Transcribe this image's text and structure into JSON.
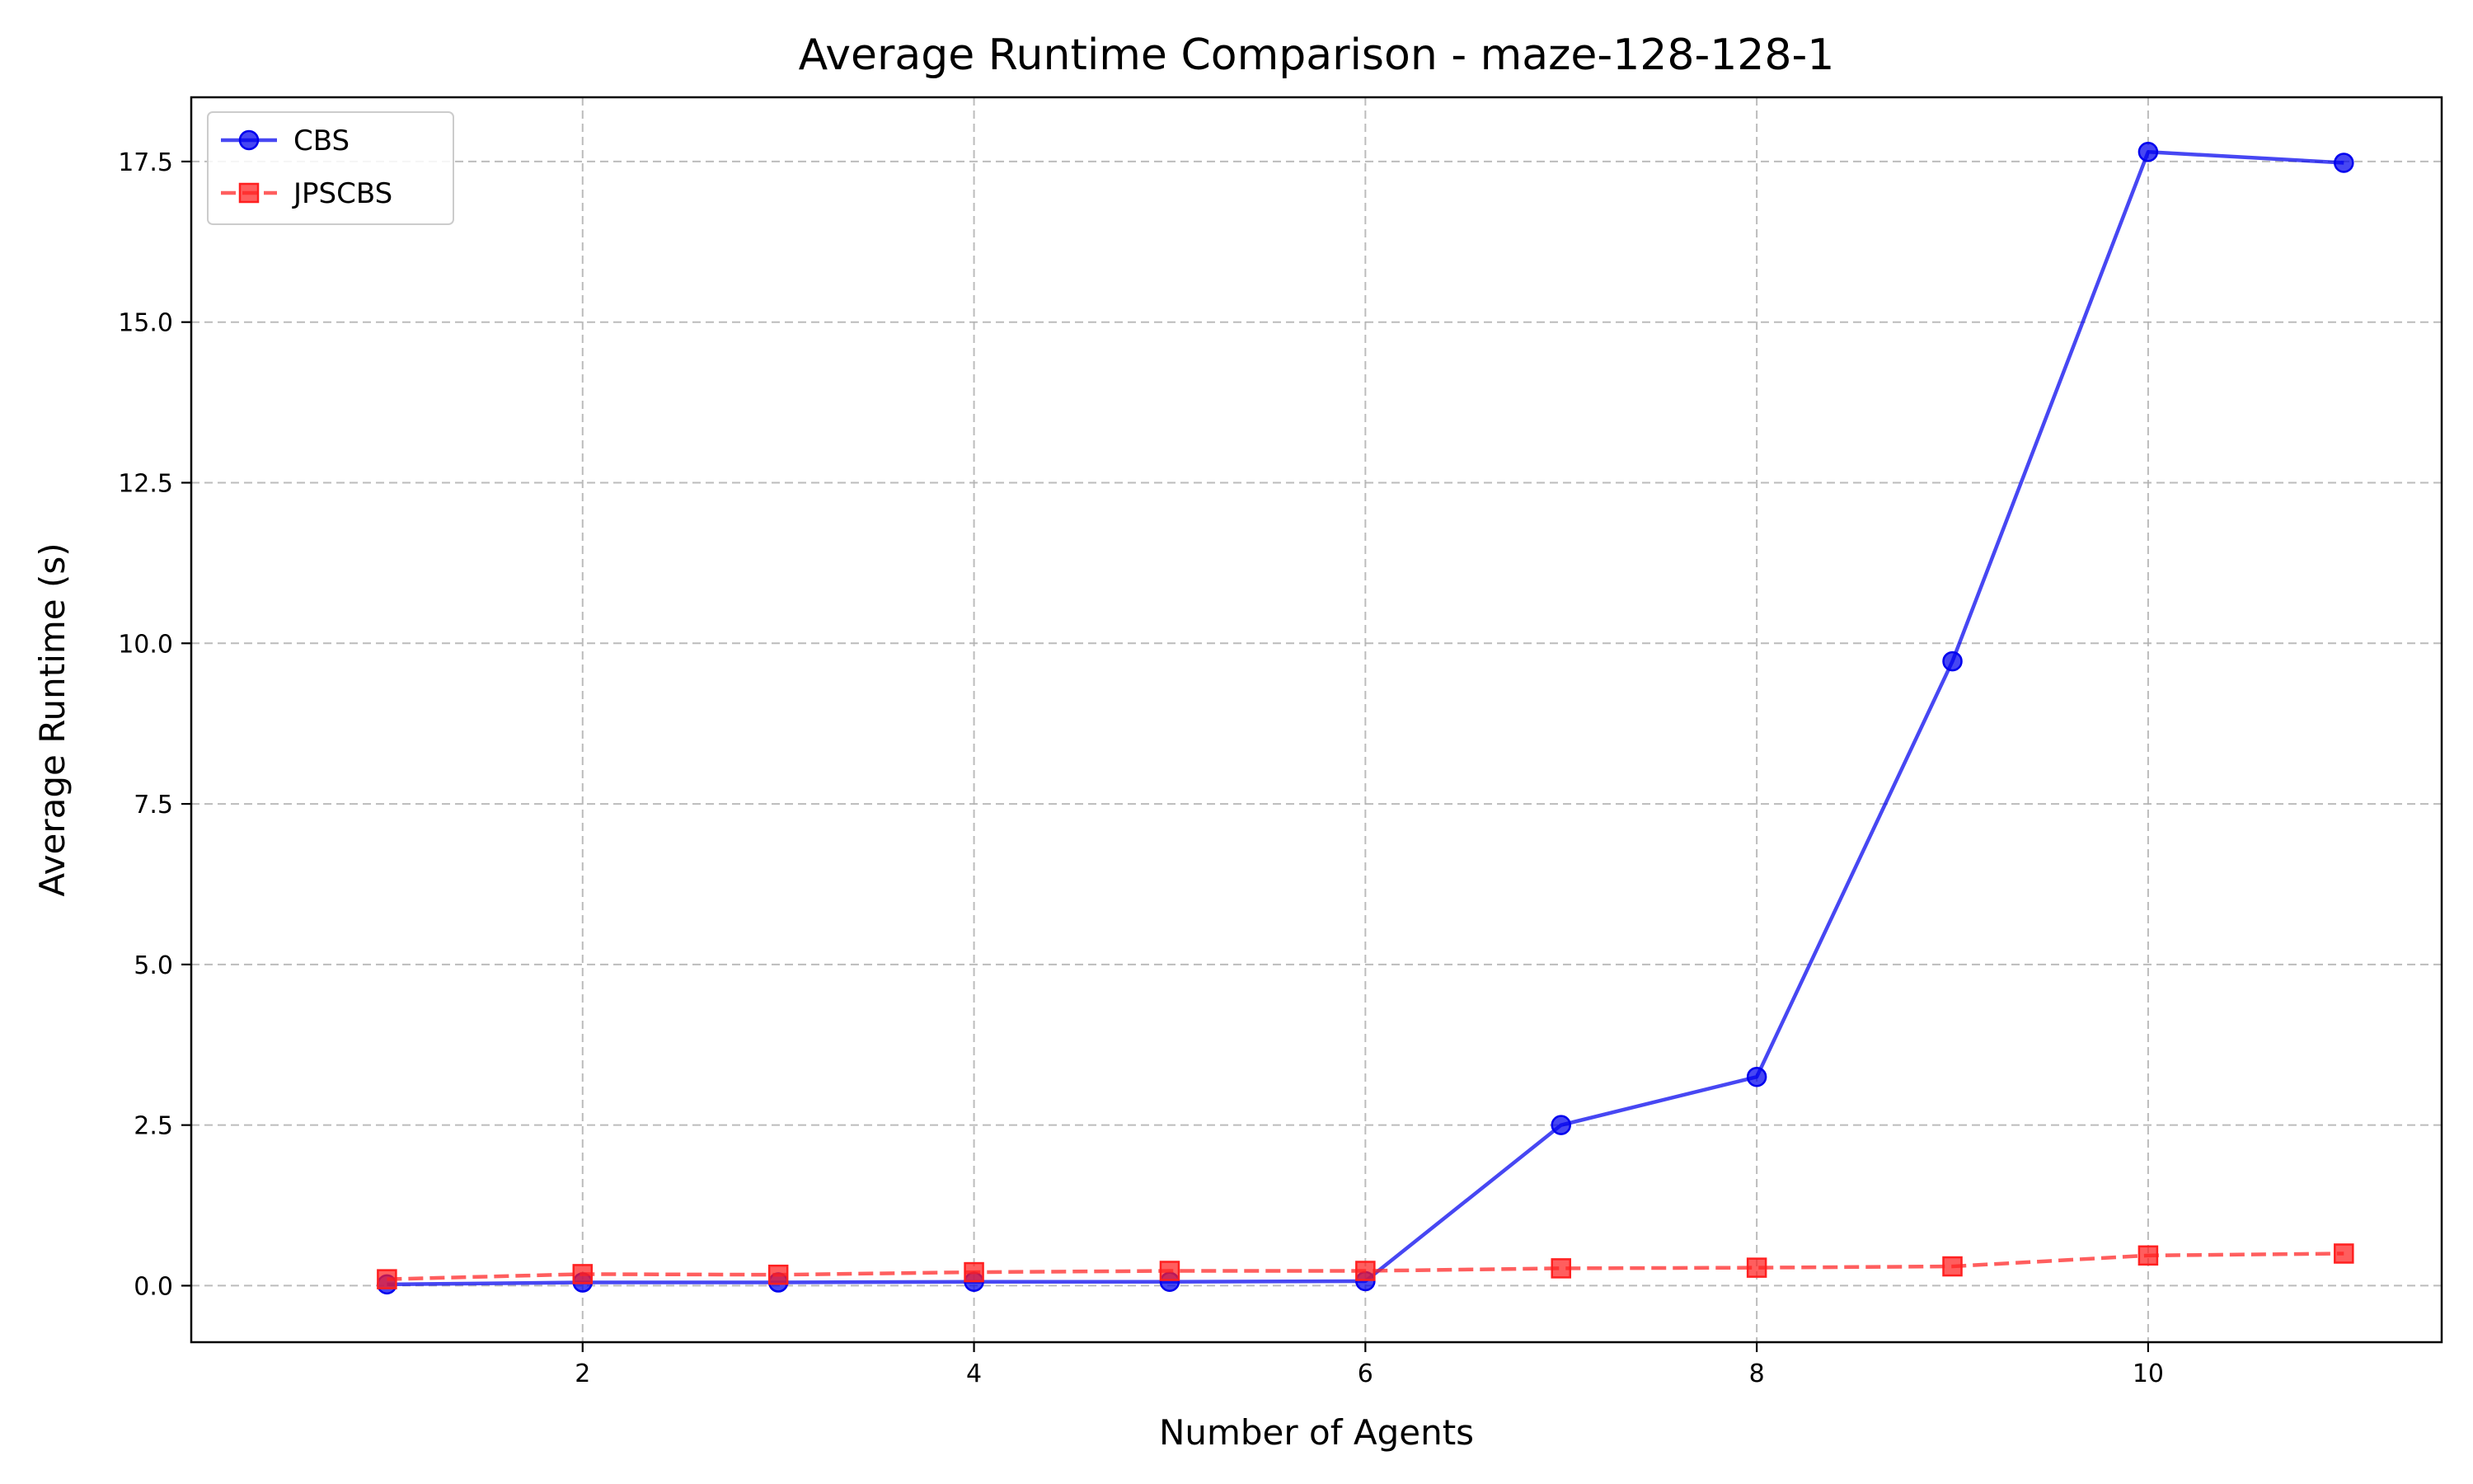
{
  "chart_data": {
    "type": "line",
    "title": "Average Runtime Comparison - maze-128-128-1",
    "xlabel": "Number of Agents",
    "ylabel": "Average Runtime (s)",
    "x": [
      1,
      2,
      3,
      4,
      5,
      6,
      7,
      8,
      9,
      10,
      11
    ],
    "xlim": [
      0.0,
      11.5
    ],
    "ylim": [
      -0.88,
      18.5
    ],
    "xticks": [
      2,
      4,
      6,
      8,
      10
    ],
    "yticks": [
      0.0,
      2.5,
      5.0,
      7.5,
      10.0,
      12.5,
      15.0,
      17.5
    ],
    "xtick_labels": [
      "2",
      "4",
      "6",
      "8",
      "10"
    ],
    "ytick_labels": [
      "0.0",
      "2.5",
      "5.0",
      "7.5",
      "10.0",
      "12.5",
      "15.0",
      "17.5"
    ],
    "grid": true,
    "legend_position": "top-left",
    "series": [
      {
        "name": "CBS",
        "values": [
          0.02,
          0.05,
          0.05,
          0.06,
          0.06,
          0.07,
          2.5,
          3.25,
          9.72,
          17.65,
          17.48
        ],
        "color": "#0000ee",
        "marker": "circle",
        "linestyle": "solid"
      },
      {
        "name": "JPSCBS",
        "values": [
          0.1,
          0.18,
          0.17,
          0.21,
          0.23,
          0.23,
          0.27,
          0.28,
          0.3,
          0.47,
          0.5
        ],
        "color": "#ff2020",
        "marker": "square",
        "linestyle": "dashed"
      }
    ]
  }
}
